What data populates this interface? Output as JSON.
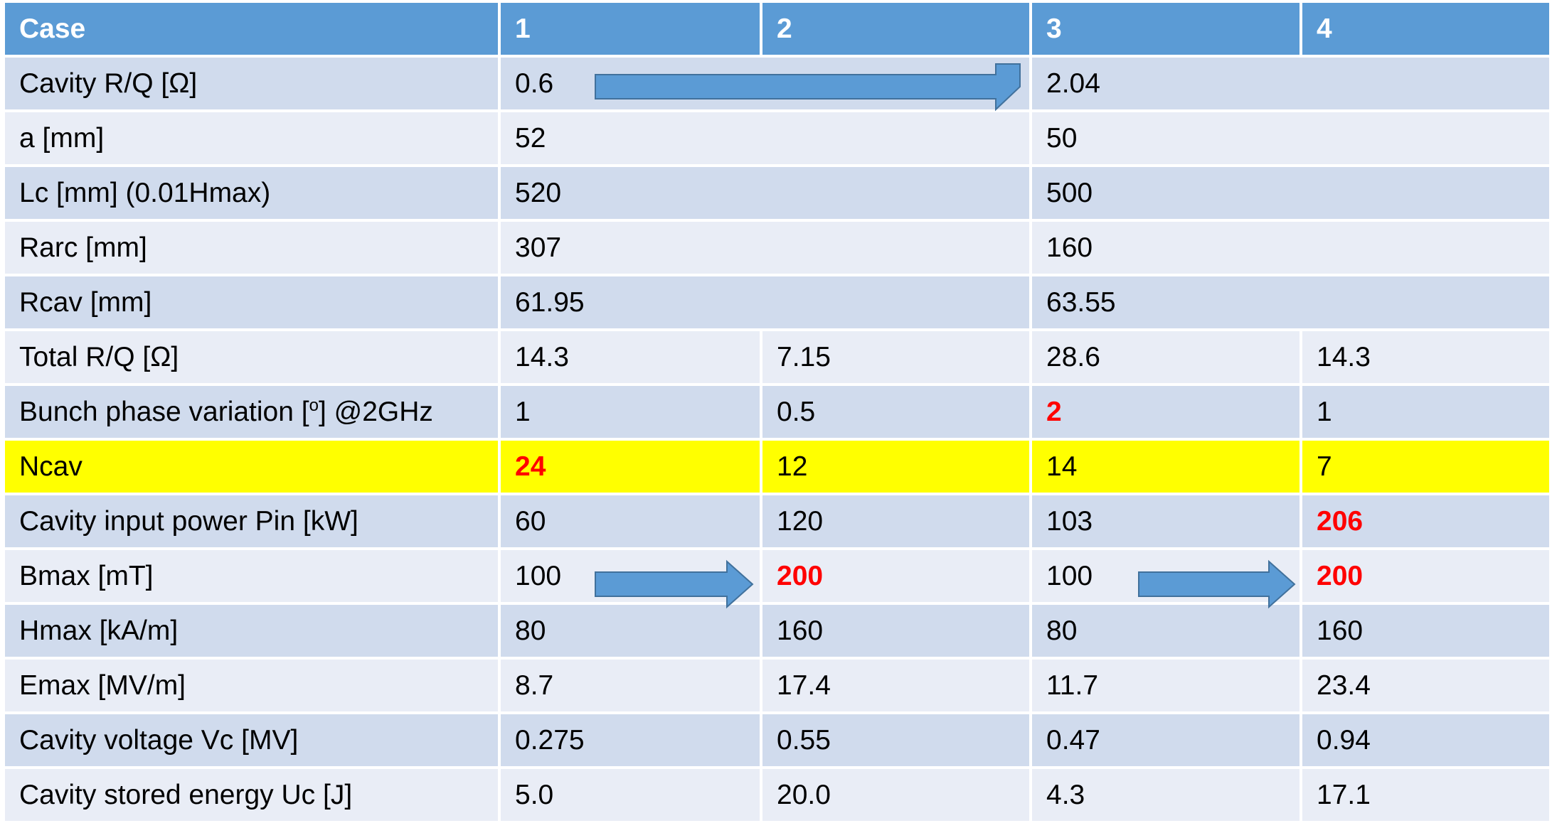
{
  "table": {
    "header": [
      "Case",
      "1",
      "2",
      "3",
      "4"
    ],
    "rows": [
      [
        "Cavity R/Q [Ω]",
        "0.6",
        "2.04"
      ],
      [
        "a [mm]",
        "52",
        "50"
      ],
      [
        "Lc [mm] (0.01Hmax)",
        "520",
        "500"
      ],
      [
        "Rarc [mm]",
        "307",
        "160"
      ],
      [
        "Rcav [mm]",
        "61.95",
        "63.55"
      ],
      [
        "Total R/Q [Ω]",
        "14.3",
        "7.15",
        "28.6",
        "14.3"
      ],
      [
        [
          "Bunch phase variation [",
          "o",
          "] @2GHz"
        ],
        "1",
        "0.5",
        "2",
        "1"
      ],
      [
        "Ncav",
        "24",
        "12",
        "14",
        "7"
      ],
      [
        "Cavity input power Pin [kW]",
        "60",
        "120",
        "103",
        "206"
      ],
      [
        "Bmax [mT]",
        "100",
        "200",
        "100",
        "200"
      ],
      [
        "Hmax [kA/m]",
        "80",
        "160",
        "80",
        "160"
      ],
      [
        "Emax [MV/m]",
        "8.7",
        "17.4",
        "11.7",
        "23.4"
      ],
      [
        "Cavity voltage Vc [MV]",
        "0.275",
        "0.55",
        "0.47",
        "0.94"
      ],
      [
        "Cavity stored energy Uc [J]",
        "5.0",
        "20.0",
        "4.3",
        "17.1"
      ]
    ]
  }
}
